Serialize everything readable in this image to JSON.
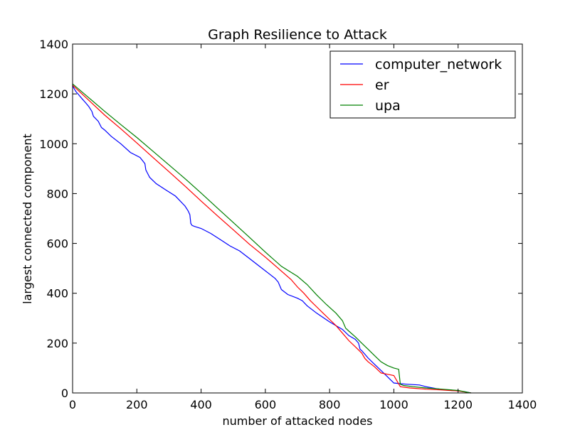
{
  "chart_data": {
    "type": "line",
    "title": "Graph Resilience to Attack",
    "xlabel": "number of attacked nodes",
    "ylabel": "largest connected component",
    "xlim": [
      0,
      1400
    ],
    "ylim": [
      0,
      1400
    ],
    "xticks": [
      0,
      200,
      400,
      600,
      800,
      1000,
      1200,
      1400
    ],
    "yticks": [
      0,
      200,
      400,
      600,
      800,
      1000,
      1200,
      1400
    ],
    "grid": false,
    "legend_position": "top-right",
    "series": [
      {
        "name": "computer_network",
        "color": "#0000ff",
        "x": [
          0,
          10,
          20,
          30,
          40,
          50,
          60,
          65,
          80,
          90,
          100,
          120,
          150,
          180,
          210,
          225,
          228,
          240,
          260,
          290,
          320,
          350,
          360,
          365,
          368,
          372,
          380,
          400,
          430,
          460,
          490,
          520,
          550,
          580,
          610,
          630,
          640,
          650,
          670,
          700,
          715,
          730,
          760,
          800,
          840,
          860,
          880,
          890,
          895,
          900,
          920,
          940,
          960,
          980,
          1000,
          1020,
          1040,
          1080,
          1100,
          1130,
          1160,
          1200,
          1220,
          1240
        ],
        "y": [
          1232,
          1210,
          1195,
          1180,
          1165,
          1150,
          1130,
          1110,
          1090,
          1065,
          1055,
          1030,
          1000,
          965,
          945,
          920,
          895,
          865,
          840,
          815,
          790,
          750,
          730,
          715,
          680,
          672,
          668,
          660,
          640,
          615,
          590,
          570,
          540,
          510,
          480,
          460,
          445,
          415,
          395,
          380,
          370,
          350,
          320,
          285,
          255,
          230,
          215,
          200,
          175,
          170,
          140,
          115,
          90,
          65,
          40,
          37,
          35,
          32,
          25,
          18,
          12,
          8,
          5,
          0
        ]
      },
      {
        "name": "er",
        "color": "#ff0000",
        "x": [
          0,
          50,
          100,
          150,
          200,
          250,
          300,
          350,
          400,
          450,
          500,
          550,
          600,
          640,
          680,
          700,
          720,
          740,
          760,
          780,
          800,
          820,
          840,
          860,
          880,
          900,
          910,
          920,
          940,
          960,
          980,
          1000,
          1020,
          1050,
          1100,
          1150,
          1200,
          1240
        ],
        "y": [
          1235,
          1175,
          1115,
          1060,
          1003,
          945,
          888,
          830,
          770,
          712,
          655,
          597,
          545,
          500,
          455,
          425,
          400,
          370,
          345,
          320,
          295,
          270,
          240,
          210,
          185,
          160,
          138,
          125,
          105,
          80,
          75,
          70,
          25,
          20,
          15,
          12,
          8,
          0
        ]
      },
      {
        "name": "upa",
        "color": "#008000",
        "x": [
          0,
          50,
          100,
          150,
          200,
          250,
          300,
          350,
          400,
          450,
          500,
          550,
          600,
          650,
          700,
          730,
          760,
          790,
          820,
          840,
          850,
          860,
          880,
          900,
          920,
          940,
          960,
          980,
          1000,
          1015,
          1020,
          1030,
          1060,
          1100,
          1150,
          1200,
          1240
        ],
        "y": [
          1240,
          1185,
          1130,
          1077,
          1025,
          970,
          915,
          860,
          802,
          743,
          684,
          625,
          565,
          508,
          468,
          435,
          393,
          355,
          320,
          290,
          260,
          248,
          225,
          200,
          175,
          150,
          125,
          110,
          100,
          95,
          35,
          30,
          25,
          20,
          15,
          10,
          0
        ]
      }
    ]
  }
}
